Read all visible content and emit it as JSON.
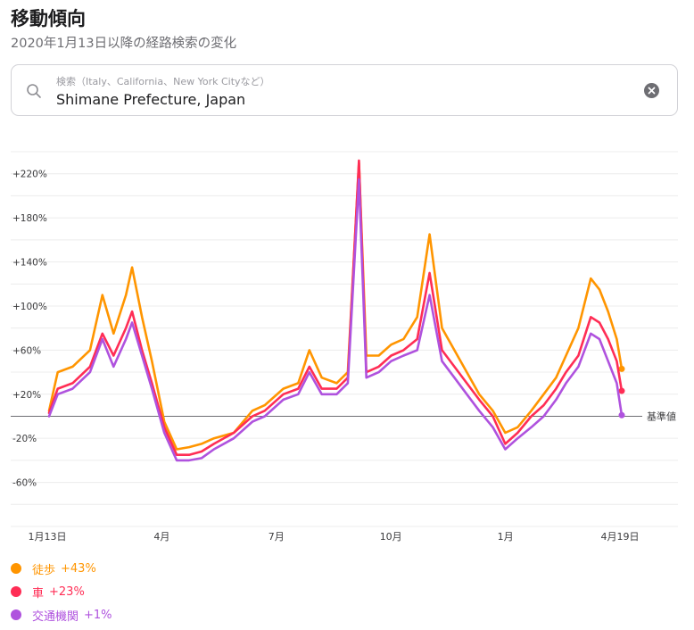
{
  "header": {
    "title": "移動傾向",
    "subtitle": "2020年1月13日以降の経路検索の変化"
  },
  "search": {
    "placeholder": "検索（Italy、California、New York Cityなど）",
    "value": "Shimane Prefecture, Japan",
    "search_icon": "search-icon",
    "clear_icon": "clear-icon"
  },
  "chart_data": {
    "type": "line",
    "x_start": "2020-01-13",
    "x_end": "2021-04-19",
    "x_tick_labels": [
      "1月13日",
      "4月",
      "7月",
      "10月",
      "1月",
      "4月19日"
    ],
    "y_tick_labels": [
      "+220%",
      "+180%",
      "+140%",
      "+100%",
      "+60%",
      "+20%",
      "-20%",
      "-60%"
    ],
    "ylim": [
      -100,
      240
    ],
    "baseline_label": "基準値",
    "grid": true,
    "series": [
      {
        "name": "徒歩",
        "latest": "+43%",
        "color": "#ff9500",
        "points": [
          [
            "2020-01-13",
            5
          ],
          [
            "2020-01-20",
            40
          ],
          [
            "2020-02-01",
            45
          ],
          [
            "2020-02-15",
            60
          ],
          [
            "2020-02-25",
            110
          ],
          [
            "2020-03-05",
            75
          ],
          [
            "2020-03-15",
            110
          ],
          [
            "2020-03-20",
            135
          ],
          [
            "2020-03-28",
            90
          ],
          [
            "2020-04-05",
            50
          ],
          [
            "2020-04-15",
            -5
          ],
          [
            "2020-04-25",
            -30
          ],
          [
            "2020-05-05",
            -28
          ],
          [
            "2020-05-15",
            -25
          ],
          [
            "2020-05-25",
            -20
          ],
          [
            "2020-06-10",
            -15
          ],
          [
            "2020-06-25",
            5
          ],
          [
            "2020-07-05",
            10
          ],
          [
            "2020-07-20",
            25
          ],
          [
            "2020-08-01",
            30
          ],
          [
            "2020-08-10",
            60
          ],
          [
            "2020-08-20",
            35
          ],
          [
            "2020-09-01",
            30
          ],
          [
            "2020-09-10",
            40
          ],
          [
            "2020-09-19",
            230
          ],
          [
            "2020-09-25",
            55
          ],
          [
            "2020-10-05",
            55
          ],
          [
            "2020-10-15",
            65
          ],
          [
            "2020-10-25",
            70
          ],
          [
            "2020-11-05",
            90
          ],
          [
            "2020-11-15",
            165
          ],
          [
            "2020-11-25",
            80
          ],
          [
            "2020-12-05",
            60
          ],
          [
            "2020-12-15",
            40
          ],
          [
            "2020-12-25",
            20
          ],
          [
            "2021-01-05",
            5
          ],
          [
            "2021-01-15",
            -15
          ],
          [
            "2021-01-25",
            -10
          ],
          [
            "2021-02-05",
            5
          ],
          [
            "2021-02-15",
            20
          ],
          [
            "2021-02-25",
            35
          ],
          [
            "2021-03-05",
            55
          ],
          [
            "2021-03-15",
            80
          ],
          [
            "2021-03-25",
            125
          ],
          [
            "2021-04-01",
            115
          ],
          [
            "2021-04-08",
            95
          ],
          [
            "2021-04-15",
            70
          ],
          [
            "2021-04-19",
            43
          ]
        ]
      },
      {
        "name": "車",
        "latest": "+23%",
        "color": "#ff2d55",
        "points": [
          [
            "2020-01-13",
            3
          ],
          [
            "2020-01-20",
            25
          ],
          [
            "2020-02-01",
            30
          ],
          [
            "2020-02-15",
            45
          ],
          [
            "2020-02-25",
            75
          ],
          [
            "2020-03-05",
            55
          ],
          [
            "2020-03-15",
            80
          ],
          [
            "2020-03-20",
            95
          ],
          [
            "2020-03-28",
            60
          ],
          [
            "2020-04-05",
            30
          ],
          [
            "2020-04-15",
            -10
          ],
          [
            "2020-04-25",
            -35
          ],
          [
            "2020-05-05",
            -35
          ],
          [
            "2020-05-15",
            -32
          ],
          [
            "2020-05-25",
            -25
          ],
          [
            "2020-06-10",
            -15
          ],
          [
            "2020-06-25",
            0
          ],
          [
            "2020-07-05",
            5
          ],
          [
            "2020-07-20",
            20
          ],
          [
            "2020-08-01",
            25
          ],
          [
            "2020-08-10",
            45
          ],
          [
            "2020-08-20",
            25
          ],
          [
            "2020-09-01",
            25
          ],
          [
            "2020-09-10",
            35
          ],
          [
            "2020-09-19",
            232
          ],
          [
            "2020-09-25",
            40
          ],
          [
            "2020-10-05",
            45
          ],
          [
            "2020-10-15",
            55
          ],
          [
            "2020-10-25",
            60
          ],
          [
            "2020-11-05",
            70
          ],
          [
            "2020-11-15",
            130
          ],
          [
            "2020-11-25",
            60
          ],
          [
            "2020-12-05",
            45
          ],
          [
            "2020-12-15",
            30
          ],
          [
            "2020-12-25",
            15
          ],
          [
            "2021-01-05",
            0
          ],
          [
            "2021-01-15",
            -25
          ],
          [
            "2021-01-25",
            -15
          ],
          [
            "2021-02-05",
            0
          ],
          [
            "2021-02-15",
            10
          ],
          [
            "2021-02-25",
            25
          ],
          [
            "2021-03-05",
            40
          ],
          [
            "2021-03-15",
            55
          ],
          [
            "2021-03-25",
            90
          ],
          [
            "2021-04-01",
            85
          ],
          [
            "2021-04-08",
            70
          ],
          [
            "2021-04-15",
            50
          ],
          [
            "2021-04-19",
            23
          ]
        ]
      },
      {
        "name": "交通機関",
        "latest": "+1%",
        "color": "#af52de",
        "points": [
          [
            "2020-01-13",
            0
          ],
          [
            "2020-01-20",
            20
          ],
          [
            "2020-02-01",
            25
          ],
          [
            "2020-02-15",
            40
          ],
          [
            "2020-02-25",
            70
          ],
          [
            "2020-03-05",
            45
          ],
          [
            "2020-03-15",
            70
          ],
          [
            "2020-03-20",
            85
          ],
          [
            "2020-03-28",
            55
          ],
          [
            "2020-04-05",
            25
          ],
          [
            "2020-04-15",
            -15
          ],
          [
            "2020-04-25",
            -40
          ],
          [
            "2020-05-05",
            -40
          ],
          [
            "2020-05-15",
            -38
          ],
          [
            "2020-05-25",
            -30
          ],
          [
            "2020-06-10",
            -20
          ],
          [
            "2020-06-25",
            -5
          ],
          [
            "2020-07-05",
            0
          ],
          [
            "2020-07-20",
            15
          ],
          [
            "2020-08-01",
            20
          ],
          [
            "2020-08-10",
            40
          ],
          [
            "2020-08-20",
            20
          ],
          [
            "2020-09-01",
            20
          ],
          [
            "2020-09-10",
            30
          ],
          [
            "2020-09-19",
            215
          ],
          [
            "2020-09-25",
            35
          ],
          [
            "2020-10-05",
            40
          ],
          [
            "2020-10-15",
            50
          ],
          [
            "2020-10-25",
            55
          ],
          [
            "2020-11-05",
            60
          ],
          [
            "2020-11-15",
            110
          ],
          [
            "2020-11-25",
            50
          ],
          [
            "2020-12-05",
            35
          ],
          [
            "2020-12-15",
            20
          ],
          [
            "2020-12-25",
            5
          ],
          [
            "2021-01-05",
            -10
          ],
          [
            "2021-01-15",
            -30
          ],
          [
            "2021-01-25",
            -20
          ],
          [
            "2021-02-05",
            -10
          ],
          [
            "2021-02-15",
            0
          ],
          [
            "2021-02-25",
            15
          ],
          [
            "2021-03-05",
            30
          ],
          [
            "2021-03-15",
            45
          ],
          [
            "2021-03-25",
            75
          ],
          [
            "2021-04-01",
            70
          ],
          [
            "2021-04-08",
            50
          ],
          [
            "2021-04-15",
            30
          ],
          [
            "2021-04-19",
            1
          ]
        ]
      }
    ]
  }
}
